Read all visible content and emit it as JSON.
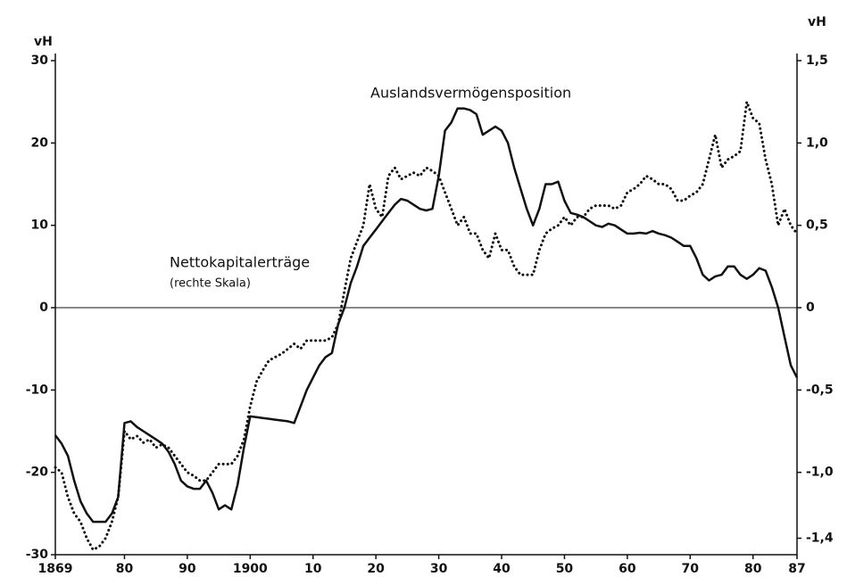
{
  "chart_data": {
    "type": "line",
    "y_label": "vH",
    "y2_label": "vH",
    "annotation": "(rechte Skala)",
    "x": [
      1869,
      1870,
      1871,
      1872,
      1873,
      1874,
      1875,
      1876,
      1877,
      1878,
      1879,
      1880,
      1881,
      1882,
      1883,
      1884,
      1885,
      1886,
      1887,
      1888,
      1889,
      1890,
      1891,
      1892,
      1893,
      1894,
      1895,
      1896,
      1897,
      1898,
      1899,
      1900,
      1901,
      1902,
      1903,
      1904,
      1905,
      1906,
      1907,
      1908,
      1909,
      1910,
      1911,
      1912,
      1913,
      1914,
      1915,
      1916,
      1917,
      1918,
      1919,
      1920,
      1921,
      1922,
      1923,
      1924,
      1925,
      1926,
      1927,
      1928,
      1929,
      1930,
      1931,
      1932,
      1933,
      1934,
      1935,
      1936,
      1937,
      1938,
      1939,
      1940,
      1941,
      1942,
      1943,
      1944,
      1945,
      1946,
      1947,
      1948,
      1949,
      1950,
      1951,
      1952,
      1953,
      1954,
      1955,
      1956,
      1957,
      1958,
      1959,
      1960,
      1961,
      1962,
      1963,
      1964,
      1965,
      1966,
      1967,
      1968,
      1969,
      1970,
      1971,
      1972,
      1973,
      1974,
      1975,
      1976,
      1977,
      1978,
      1979,
      1980,
      1981,
      1982,
      1983,
      1984,
      1985,
      1986,
      1987
    ],
    "series": [
      {
        "name": "Auslandsvermögensposition",
        "color": "#111111",
        "style": "solid",
        "values": [
          -15.5,
          -16.5,
          -18,
          -21,
          -23.5,
          -25,
          -26,
          -26,
          -26,
          -25,
          -23,
          -14,
          -13.8,
          -14.5,
          -15,
          -15.5,
          -16,
          -16.5,
          -17.5,
          -19,
          -21,
          -21.7,
          -22,
          -22,
          -21,
          -22.5,
          -24.5,
          -24,
          -24.5,
          -21.5,
          -17,
          -13.2,
          -13.3,
          -13.4,
          -13.5,
          -13.6,
          -13.7,
          -13.8,
          -14,
          -12,
          -10,
          -8.5,
          -7,
          -6,
          -5.5,
          -2,
          0,
          3,
          5,
          7.5,
          8.5,
          9.5,
          10.5,
          11.5,
          12.5,
          13.2,
          13,
          12.5,
          12,
          11.8,
          12,
          16,
          21.5,
          22.5,
          24.2,
          24.2,
          24,
          23.5,
          21,
          21.5,
          22,
          21.5,
          20,
          17,
          14.5,
          12,
          10,
          12,
          15,
          15,
          15.3,
          13,
          11.5,
          11.3,
          11,
          10.5,
          10,
          9.8,
          10.2,
          10,
          9.5,
          9,
          9,
          9.1,
          9,
          9.3,
          9,
          8.8,
          8.5,
          8,
          7.5,
          7.5,
          6,
          4,
          3.3,
          3.8,
          4,
          5,
          5,
          4,
          3.5,
          4,
          4.8,
          4.5,
          2.5,
          0,
          -3.5,
          -7,
          -8.5
        ]
      },
      {
        "name": "Nettokapitalerträge",
        "color": "#111111",
        "style": "dotted",
        "axis": "y2",
        "values": [
          -0.97,
          -1.0,
          -1.15,
          -1.25,
          -1.3,
          -1.4,
          -1.47,
          -1.45,
          -1.4,
          -1.3,
          -1.15,
          -0.75,
          -0.8,
          -0.78,
          -0.82,
          -0.8,
          -0.85,
          -0.83,
          -0.85,
          -0.9,
          -0.95,
          -1.0,
          -1.02,
          -1.05,
          -1.05,
          -1.0,
          -0.95,
          -0.95,
          -0.95,
          -0.9,
          -0.8,
          -0.6,
          -0.45,
          -0.38,
          -0.32,
          -0.3,
          -0.28,
          -0.25,
          -0.22,
          -0.25,
          -0.2,
          -0.2,
          -0.2,
          -0.2,
          -0.18,
          -0.1,
          0.1,
          0.3,
          0.4,
          0.5,
          0.75,
          0.6,
          0.55,
          0.8,
          0.85,
          0.78,
          0.8,
          0.82,
          0.8,
          0.85,
          0.83,
          0.8,
          0.7,
          0.6,
          0.5,
          0.55,
          0.45,
          0.45,
          0.35,
          0.3,
          0.45,
          0.35,
          0.35,
          0.25,
          0.2,
          0.2,
          0.2,
          0.35,
          0.45,
          0.48,
          0.5,
          0.55,
          0.5,
          0.55,
          0.55,
          0.6,
          0.62,
          0.62,
          0.62,
          0.6,
          0.62,
          0.7,
          0.72,
          0.75,
          0.8,
          0.78,
          0.75,
          0.75,
          0.72,
          0.65,
          0.65,
          0.68,
          0.7,
          0.75,
          0.9,
          1.05,
          0.85,
          0.9,
          0.92,
          0.95,
          1.25,
          1.15,
          1.12,
          0.9,
          0.75,
          0.5,
          0.6,
          0.5,
          0.45
        ]
      }
    ],
    "xlim": [
      1869,
      1987
    ],
    "xticks": [
      1869,
      {
        "value": 1880,
        "label": "80"
      },
      {
        "value": 1890,
        "label": "90"
      },
      1900,
      {
        "value": 1910,
        "label": "10"
      },
      {
        "value": 1920,
        "label": "20"
      },
      {
        "value": 1930,
        "label": "30"
      },
      {
        "value": 1940,
        "label": "40"
      },
      {
        "value": 1950,
        "label": "50"
      },
      {
        "value": 1960,
        "label": "60"
      },
      {
        "value": 1970,
        "label": "70"
      },
      {
        "value": 1980,
        "label": "80"
      },
      {
        "value": 1987,
        "label": "87"
      }
    ],
    "ylim": [
      -30,
      30
    ],
    "yticks": [
      -30,
      -20,
      -10,
      0,
      10,
      20,
      30
    ],
    "y2lim": [
      -1.5,
      1.5
    ],
    "y2ticks": [
      {
        "value": -1.4,
        "label": "-1,4"
      },
      {
        "value": -1.0,
        "label": "-1,0"
      },
      {
        "value": -0.5,
        "label": "-0,5"
      },
      0,
      {
        "value": 0.5,
        "label": "0,5"
      },
      {
        "value": 1.0,
        "label": "1,0"
      },
      {
        "value": 1.5,
        "label": "1,5"
      }
    ],
    "zero_line": true
  }
}
